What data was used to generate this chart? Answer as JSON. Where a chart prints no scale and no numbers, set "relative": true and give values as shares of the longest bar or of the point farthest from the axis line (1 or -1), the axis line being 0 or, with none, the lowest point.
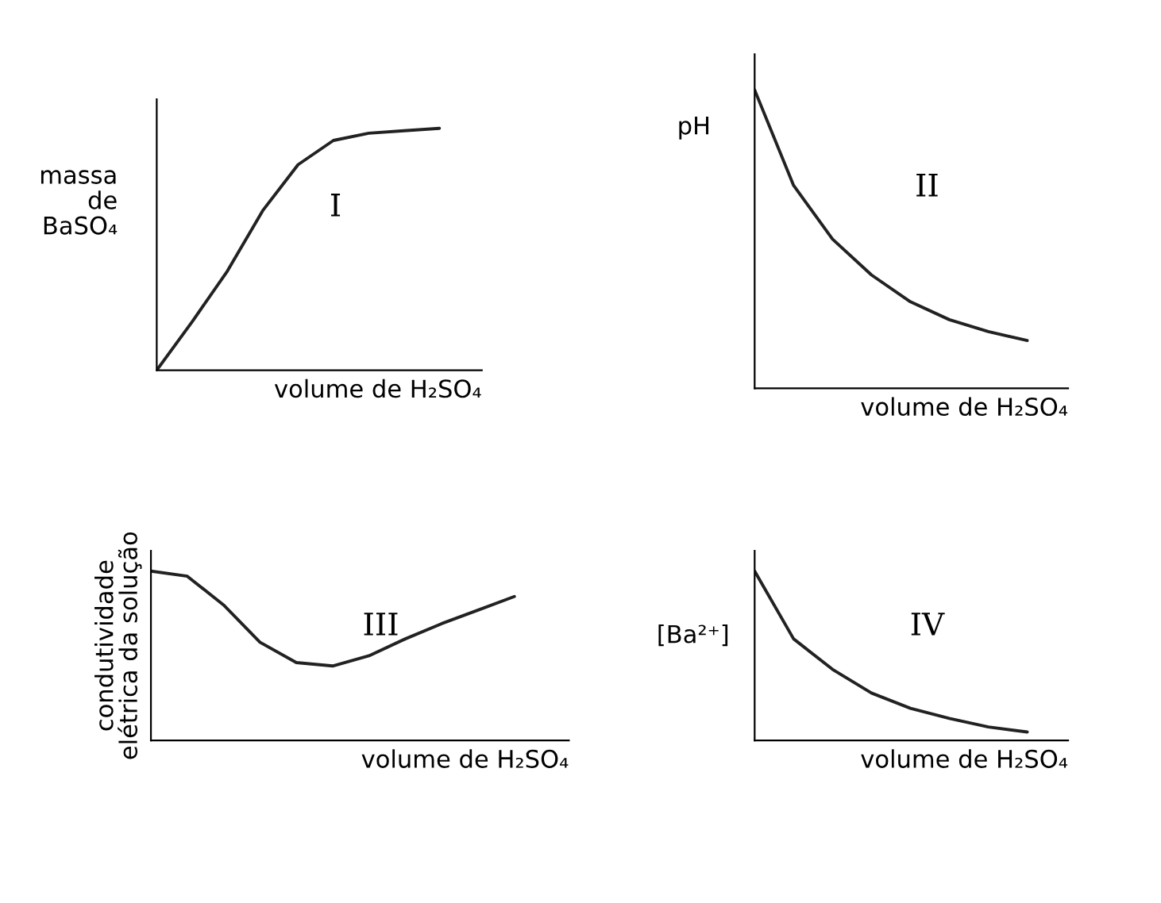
{
  "chart_data": [
    {
      "type": "line",
      "relative": true,
      "tick_labels": false,
      "ylabel": "massa\nde\nBaSO₄",
      "xlabel": "volume de H₂SO₄",
      "annotations": [
        "I"
      ],
      "categories": [
        null,
        null,
        null,
        null,
        null,
        null,
        null,
        null,
        null
      ],
      "values": [
        0,
        0.2,
        0.41,
        0.66,
        0.85,
        0.95,
        0.98,
        0.99,
        1.0
      ],
      "color": "#222222"
    },
    {
      "type": "line",
      "relative": true,
      "tick_labels": false,
      "ylabel": "pH",
      "xlabel": "volume de H₂SO₄",
      "annotations": [
        "II"
      ],
      "categories": [
        null,
        null,
        null,
        null,
        null,
        null,
        null,
        null
      ],
      "values": [
        1.0,
        0.68,
        0.5,
        0.38,
        0.29,
        0.23,
        0.19,
        0.16
      ],
      "color": "#222222"
    },
    {
      "type": "line",
      "relative": true,
      "tick_labels": false,
      "ylabel": "condutividade\nelétrica da solução",
      "xlabel": "volume de H₂SO₄",
      "annotations": [
        "III"
      ],
      "categories": [
        null,
        null,
        null,
        null,
        null,
        null,
        null,
        null,
        null,
        null,
        null
      ],
      "values": [
        1.0,
        0.97,
        0.8,
        0.58,
        0.46,
        0.44,
        0.5,
        0.6,
        0.69,
        0.77,
        0.85
      ],
      "color": "#222222"
    },
    {
      "type": "line",
      "relative": true,
      "tick_labels": false,
      "ylabel": "[Ba²⁺]",
      "xlabel": "volume de H₂SO₄",
      "annotations": [
        "IV"
      ],
      "categories": [
        null,
        null,
        null,
        null,
        null,
        null,
        null,
        null
      ],
      "values": [
        1.0,
        0.6,
        0.42,
        0.28,
        0.19,
        0.13,
        0.08,
        0.05
      ],
      "color": "#222222"
    }
  ]
}
